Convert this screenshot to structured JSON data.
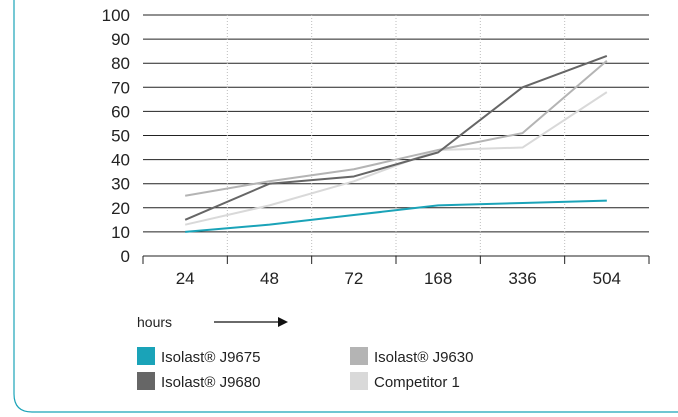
{
  "chart_data": {
    "type": "line",
    "x_categories": [
      "24",
      "48",
      "72",
      "168",
      "336",
      "504"
    ],
    "x_unit_label": "hours",
    "y_ticks": [
      "0",
      "10",
      "20",
      "30",
      "40",
      "50",
      "60",
      "70",
      "80",
      "90",
      "100"
    ],
    "ylim": [
      0,
      100
    ],
    "grid": "horizontal solid, vertical dotted",
    "legend_position": "bottom",
    "series": [
      {
        "name": "Isolast® J9675",
        "color": "#1aa3b8",
        "values": [
          10,
          13,
          17,
          21,
          22,
          23
        ]
      },
      {
        "name": "Isolast® J9630",
        "color": "#b4b4b4",
        "values": [
          25,
          31,
          36,
          44,
          51,
          81
        ]
      },
      {
        "name": "Isolast® J9680",
        "color": "#666666",
        "values": [
          15,
          30,
          33,
          43,
          70,
          83
        ]
      },
      {
        "name": "Competitor 1",
        "color": "#d9d9d9",
        "values": [
          13,
          21,
          31,
          44,
          45,
          68
        ]
      }
    ]
  }
}
